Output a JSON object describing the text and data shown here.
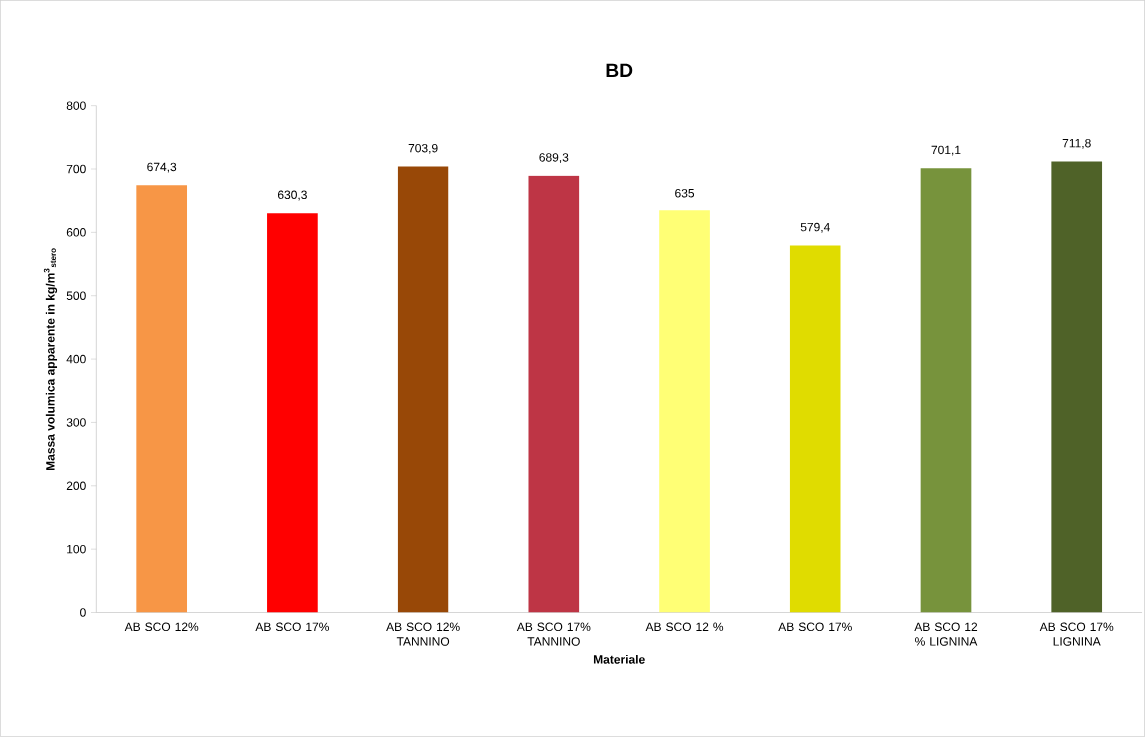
{
  "chart_data": {
    "type": "bar",
    "title": "BD",
    "xlabel": "Materiale",
    "ylabel": "Massa volumica apparente in kg/m$^{3}$$_{stero}$",
    "categories": [
      "AB SCO 12%",
      "AB SCO 17%",
      "AB SCO 12% TANNINO",
      "AB SCO 17% TANNINO",
      "AB SCO 12 %",
      "AB SCO 17%",
      "AB SCO 12 % LIGNINA",
      "AB SCO 17% LIGNINA"
    ],
    "values": [
      674.3,
      630.3,
      703.9,
      689.3,
      635,
      579.4,
      701.1,
      711.8
    ],
    "colors": [
      "#f79646",
      "#ff0000",
      "#984807",
      "#be3545",
      "#ffff75",
      "#e0dc00",
      "#77933c",
      "#4f6228"
    ],
    "value_labels": [
      "674,3",
      "630,3",
      "703,9",
      "689,3",
      "635",
      "579,4",
      "701,1",
      "711,8"
    ],
    "ylim": [
      0,
      800
    ],
    "yticks": [
      0,
      100,
      200,
      300,
      400,
      500,
      600,
      700,
      800
    ],
    "grid": false
  }
}
